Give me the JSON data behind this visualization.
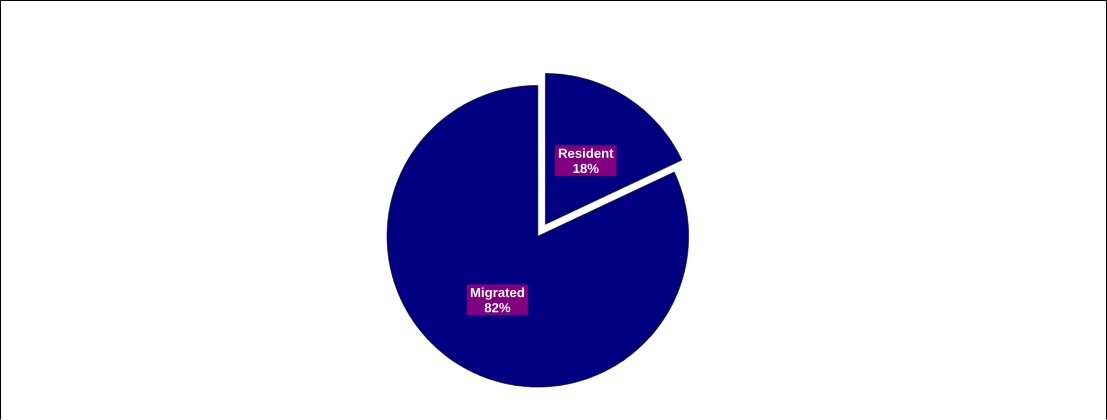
{
  "chart_data": {
    "type": "pie",
    "categories": [
      "Resident",
      "Migrated"
    ],
    "values": [
      18,
      82
    ],
    "value_labels": [
      "18%",
      "82%"
    ],
    "colors": [
      "#000080",
      "#000080"
    ],
    "legend": false
  }
}
